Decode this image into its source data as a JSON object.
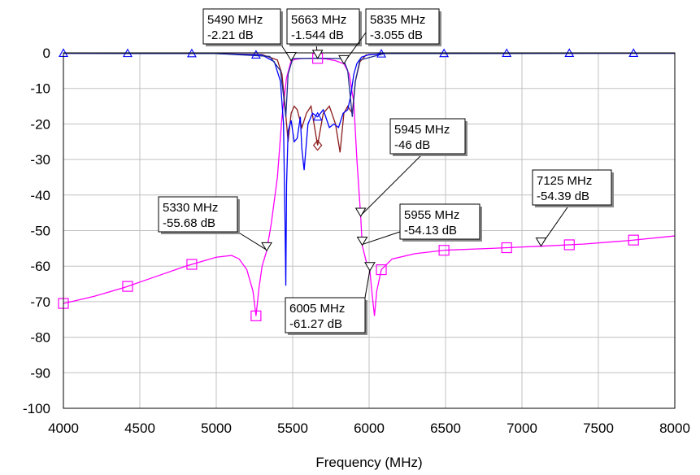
{
  "chart_data": {
    "type": "line",
    "title": "",
    "xlabel": "Frequency (MHz)",
    "ylabel": "",
    "xlim": [
      4000,
      8000
    ],
    "ylim": [
      -100,
      0
    ],
    "xticks": [
      4000,
      4500,
      5000,
      5500,
      6000,
      6500,
      7000,
      7500,
      8000
    ],
    "yticks": [
      0,
      -10,
      -20,
      -30,
      -40,
      -50,
      -60,
      -70,
      -80,
      -90,
      -100
    ],
    "xtick_labels": [
      "4000",
      "4500",
      "5000",
      "5500",
      "6000",
      "6500",
      "7000",
      "7500",
      "8000"
    ],
    "ytick_labels": [
      "0",
      "-10",
      "-20",
      "-30",
      "-40",
      "-50",
      "-60",
      "-70",
      "-80",
      "-90",
      "-100"
    ],
    "grid": true,
    "series": [
      {
        "color": "#ff00ff",
        "marker": "square",
        "x": [
          4000,
          4200,
          4400,
          4600,
          4800,
          5000,
          5100,
          5150,
          5200,
          5240,
          5260,
          5280,
          5300,
          5330,
          5360,
          5400,
          5430,
          5460,
          5490,
          5520,
          5560,
          5600,
          5663,
          5720,
          5780,
          5835,
          5870,
          5900,
          5920,
          5945,
          5955,
          5980,
          6005,
          6020,
          6035,
          6050,
          6080,
          6150,
          6300,
          6500,
          6800,
          7125,
          7400,
          7700,
          8000
        ],
        "y": [
          -70.5,
          -68.5,
          -66,
          -63,
          -60,
          -57.5,
          -57,
          -58,
          -61,
          -67,
          -74,
          -66,
          -60,
          -55.68,
          -48,
          -35,
          -18,
          -7,
          -2.21,
          -1.8,
          -1.6,
          -1.55,
          -1.544,
          -1.7,
          -2.2,
          -3.055,
          -6,
          -14,
          -30,
          -46,
          -54.13,
          -58.5,
          -61.27,
          -68,
          -74,
          -67,
          -61,
          -58,
          -56.5,
          -55.5,
          -55,
          -54.39,
          -53.8,
          -52.8,
          -51.5
        ],
        "marker_x": [
          4000,
          4420,
          4840,
          5260,
          5663,
          6080,
          6490,
          6900,
          7310,
          7730
        ]
      },
      {
        "color": "#8b1a1a",
        "marker": "diamond",
        "x": [
          4000,
          5000,
          5300,
          5400,
          5430,
          5450,
          5470,
          5490,
          5510,
          5530,
          5560,
          5590,
          5620,
          5663,
          5700,
          5740,
          5780,
          5810,
          5835,
          5860,
          5890,
          5910,
          5940,
          5980,
          6100,
          7000,
          8000
        ],
        "y": [
          -0.1,
          -0.2,
          -0.5,
          -2,
          -6,
          -15,
          -25,
          -17,
          -15,
          -16,
          -21,
          -17,
          -15,
          -26,
          -17,
          -15,
          -20,
          -28,
          -17,
          -15,
          -17,
          -8,
          -2.5,
          -0.6,
          -0.2,
          -0.1,
          -0.1
        ],
        "marker_x": [
          5663
        ]
      },
      {
        "color": "#0000ff",
        "marker": "triangle-up",
        "x": [
          4000,
          5000,
          5300,
          5380,
          5420,
          5440,
          5450,
          5455,
          5460,
          5470,
          5490,
          5510,
          5530,
          5550,
          5560,
          5575,
          5600,
          5630,
          5663,
          5700,
          5740,
          5770,
          5800,
          5830,
          5860,
          5880,
          5900,
          5920,
          5950,
          6000,
          6100,
          7000,
          8000
        ],
        "y": [
          -0.1,
          -0.2,
          -0.6,
          -2.5,
          -8,
          -20,
          -48,
          -65.5,
          -37,
          -22,
          -19,
          -25,
          -24,
          -18,
          -27,
          -33,
          -20,
          -17,
          -18,
          -16,
          -21,
          -20,
          -21,
          -17,
          -16,
          -12,
          -6,
          -3,
          -1.2,
          -0.5,
          -0.2,
          -0.1,
          -0.1
        ],
        "marker_x": [
          4000,
          4420,
          4840,
          5260,
          5663,
          6080,
          6490,
          6900,
          7310,
          7730
        ]
      },
      {
        "color": "#1c2f8c",
        "marker": "triangle-up",
        "x": [
          4000,
          5000,
          5350,
          5420,
          5440,
          5455,
          5470,
          5500,
          5663,
          5830,
          5860,
          5890,
          5910,
          5940,
          6100,
          8000
        ],
        "y": [
          -0.1,
          -0.2,
          -1,
          -5,
          -12,
          -18,
          -6,
          -1.6,
          -1.5,
          -1.6,
          -5,
          -18,
          -8,
          -2,
          -0.2,
          -0.1
        ],
        "marker_x": []
      }
    ],
    "markers": [
      {
        "x": 5490,
        "y": -2.21,
        "line1": "5490 MHz",
        "line2": "-2.21 dB"
      },
      {
        "x": 5663,
        "y": -1.544,
        "line1": "5663 MHz",
        "line2": "-1.544 dB"
      },
      {
        "x": 5835,
        "y": -3.055,
        "line1": "5835 MHz",
        "line2": "-3.055 dB"
      },
      {
        "x": 5945,
        "y": -46,
        "line1": "5945 MHz",
        "line2": "-46 dB"
      },
      {
        "x": 5330,
        "y": -55.68,
        "line1": "5330 MHz",
        "line2": "-55.68 dB"
      },
      {
        "x": 5955,
        "y": -54.13,
        "line1": "5955 MHz",
        "line2": "-54.13 dB"
      },
      {
        "x": 6005,
        "y": -61.27,
        "line1": "6005 MHz",
        "line2": "-61.27 dB"
      },
      {
        "x": 7125,
        "y": -54.39,
        "line1": "7125 MHz",
        "line2": "-54.39 dB"
      }
    ]
  }
}
